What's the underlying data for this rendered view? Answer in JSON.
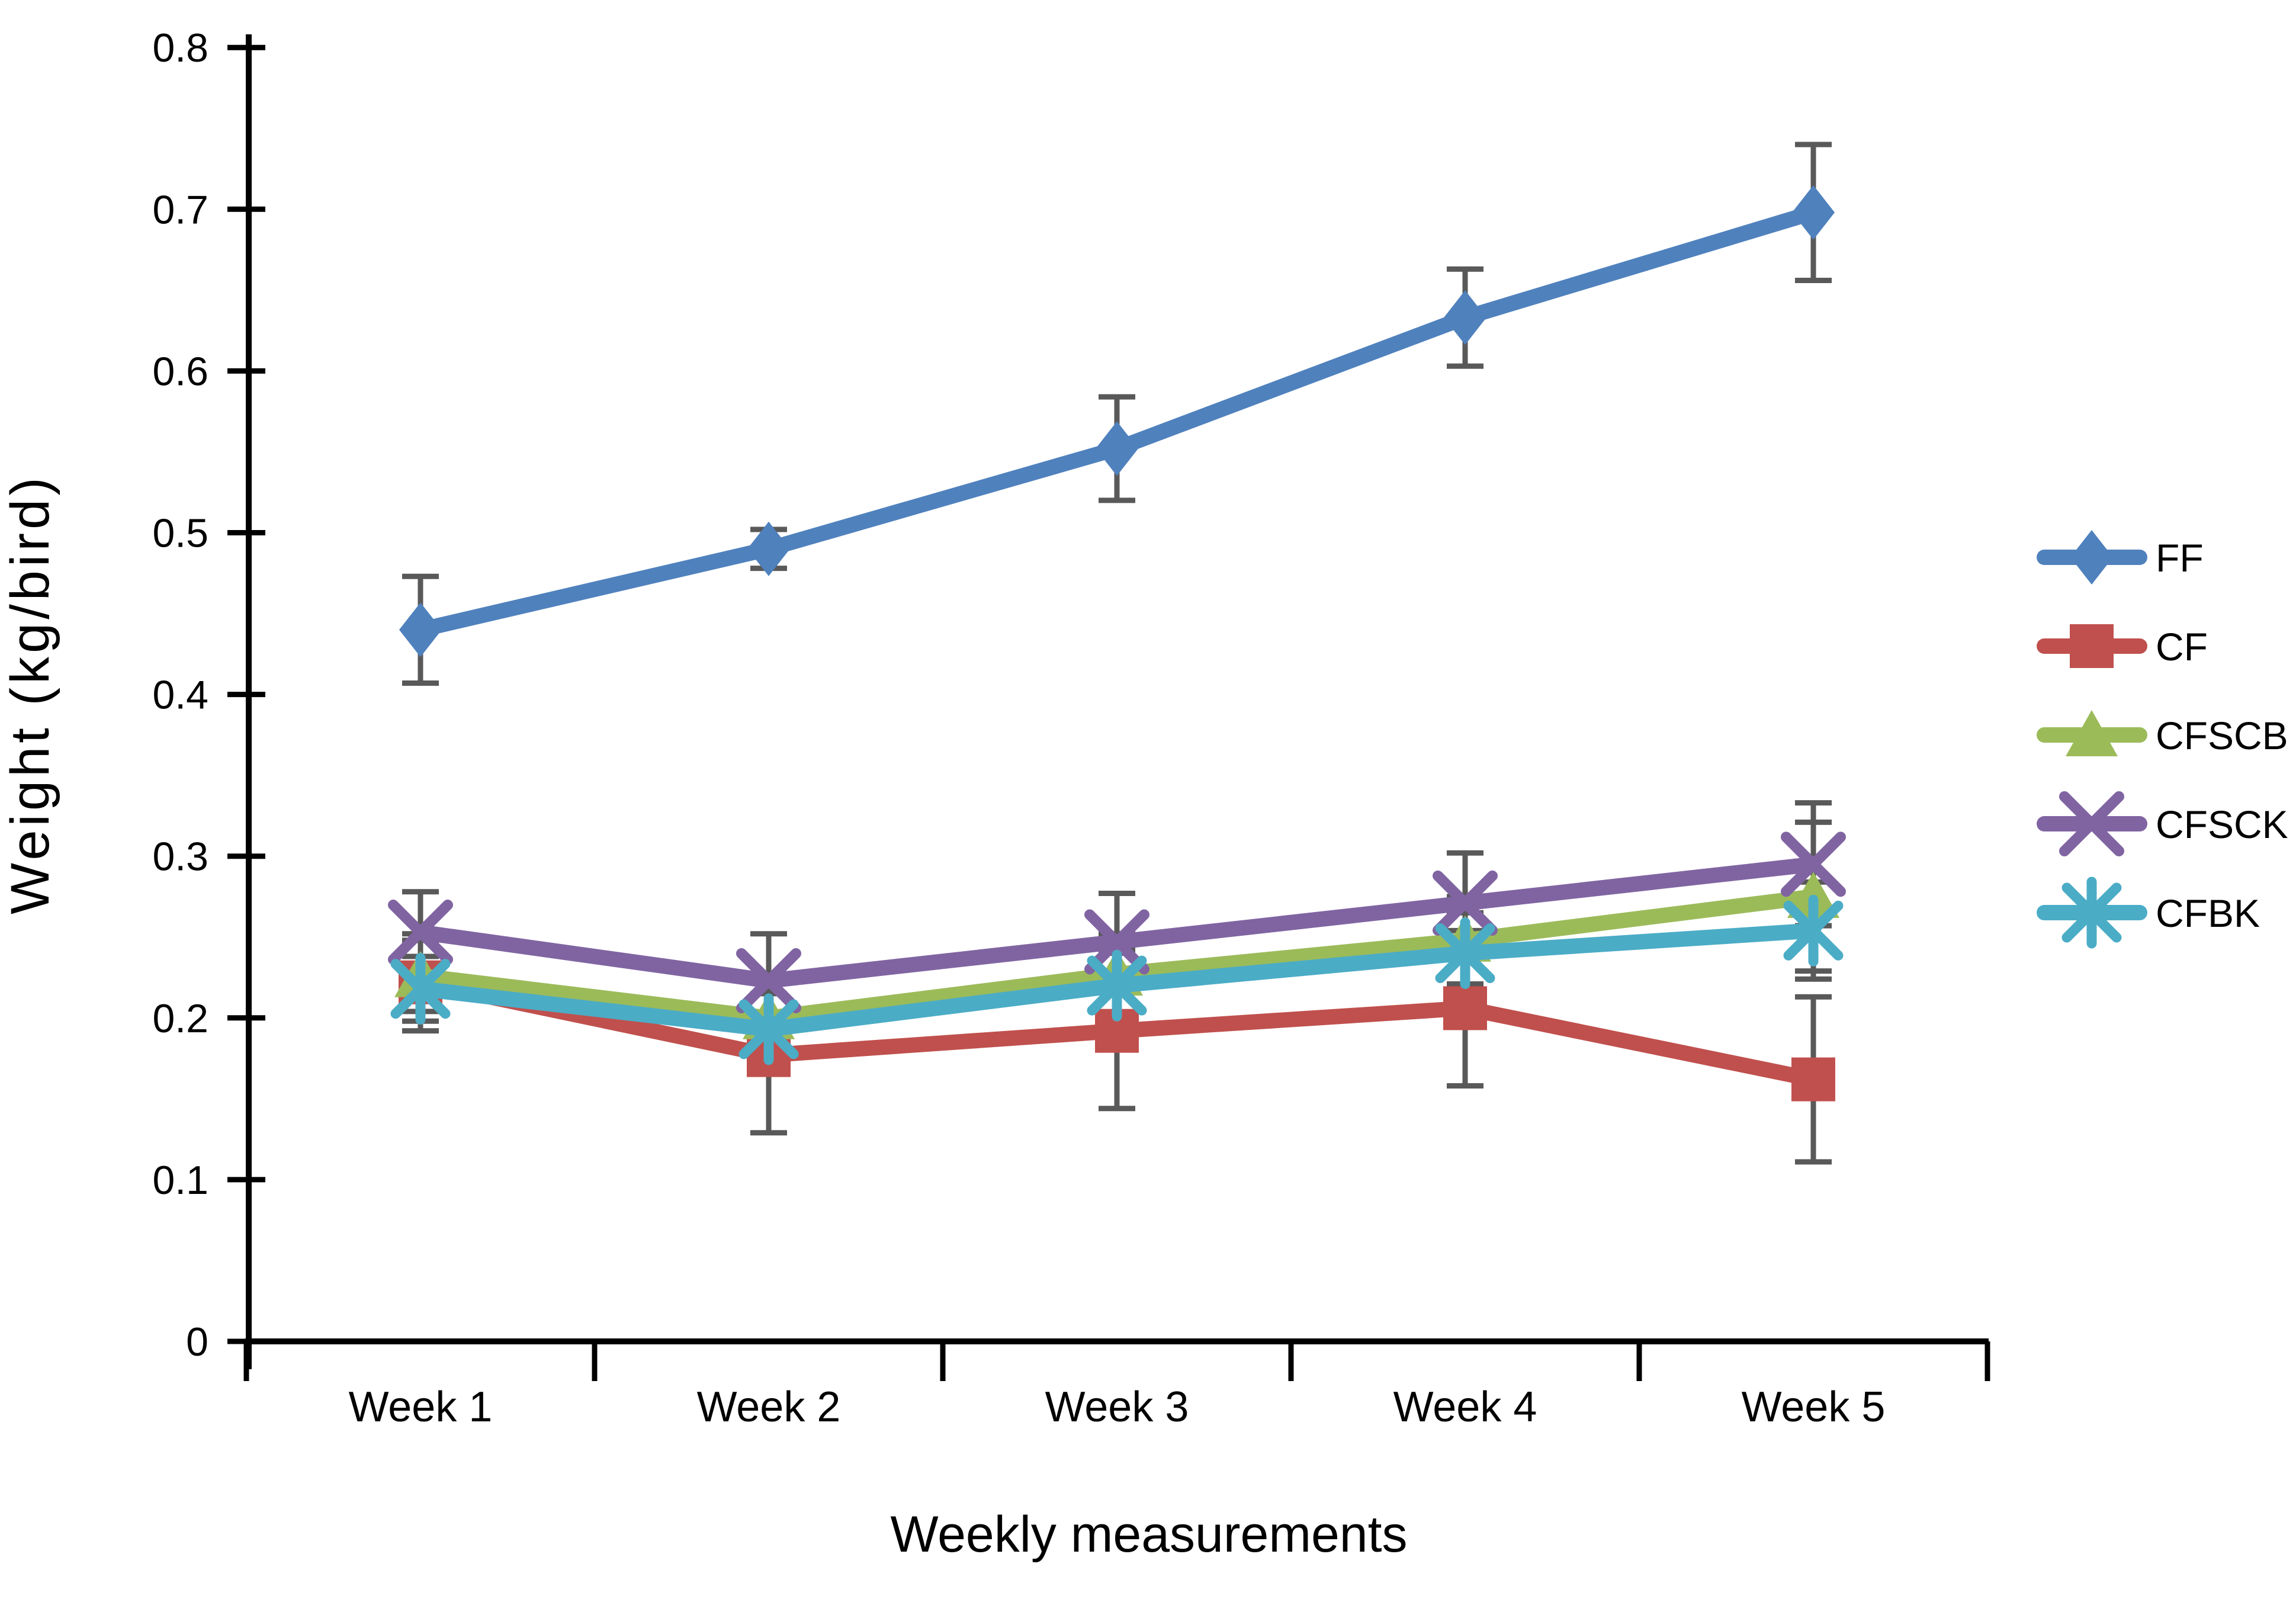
{
  "figure": {
    "background": "#ffffff",
    "text_color": "#000000"
  },
  "chart_data": {
    "type": "line",
    "title": "",
    "xlabel": "Weekly measurements",
    "ylabel": "Weight (kg/bird)",
    "categories": [
      "Week 1",
      "Week 2",
      "Week 3",
      "Week 4",
      "Week 5"
    ],
    "ylim": [
      0,
      0.8
    ],
    "yticks": [
      {
        "value": 0.0,
        "label": "0"
      },
      {
        "value": 0.1,
        "label": "0.1"
      },
      {
        "value": 0.2,
        "label": "0.2"
      },
      {
        "value": 0.3,
        "label": "0.3"
      },
      {
        "value": 0.4,
        "label": "0.4"
      },
      {
        "value": 0.5,
        "label": "0.5"
      },
      {
        "value": 0.6,
        "label": "0.6"
      },
      {
        "value": 0.7,
        "label": "0.7"
      },
      {
        "value": 0.8,
        "label": "0.8"
      }
    ],
    "grid": false,
    "legend_position": "right",
    "has_error_bars": true,
    "error_bar_color": "#595959",
    "axis_color": "#000000",
    "series": [
      {
        "name": "FF",
        "marker": "diamond",
        "color": "#4F81BD",
        "values": [
          0.44,
          0.49,
          0.552,
          0.633,
          0.698
        ],
        "errors": [
          0.033,
          0.012,
          0.032,
          0.03,
          0.042
        ]
      },
      {
        "name": "CF",
        "marker": "square",
        "color": "#C0504D",
        "values": [
          0.222,
          0.177,
          0.192,
          0.206,
          0.162
        ],
        "errors": [
          0.03,
          0.048,
          0.048,
          0.048,
          0.051
        ]
      },
      {
        "name": "CFSCB",
        "marker": "triangle",
        "color": "#9BBB59",
        "values": [
          0.226,
          0.2,
          0.227,
          0.248,
          0.275
        ],
        "errors": [
          0.022,
          0.025,
          0.025,
          0.027,
          0.046
        ]
      },
      {
        "name": "CFSCK",
        "marker": "x",
        "color": "#8064A2",
        "values": [
          0.253,
          0.223,
          0.247,
          0.271,
          0.295
        ],
        "errors": [
          0.025,
          0.029,
          0.03,
          0.031,
          0.038
        ]
      },
      {
        "name": "CFBK",
        "marker": "asterisk",
        "color": "#4BACC6",
        "values": [
          0.218,
          0.193,
          0.22,
          0.24,
          0.254
        ],
        "errors": [
          0.02,
          0.022,
          0.022,
          0.025,
          0.03
        ]
      }
    ]
  }
}
